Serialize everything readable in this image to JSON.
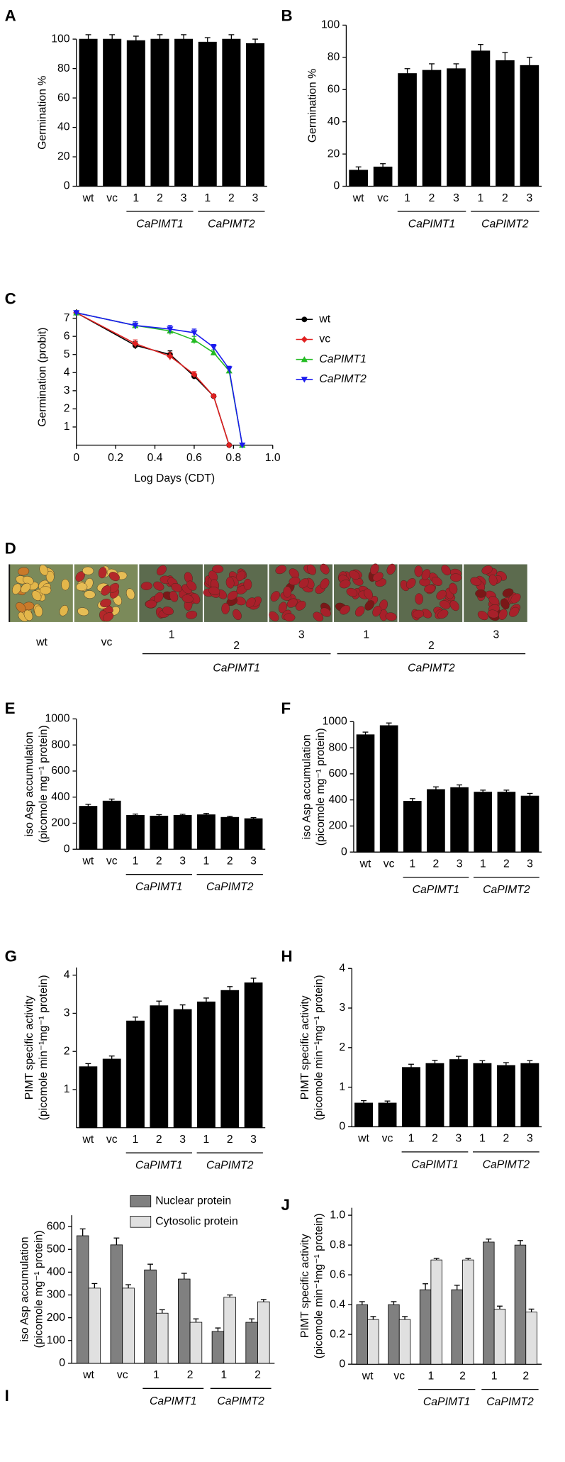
{
  "chart_data": [
    {
      "type": "bar",
      "panel": "A",
      "ylabel": [
        "Germination %"
      ],
      "categories": [
        "wt",
        "vc",
        "1",
        "2",
        "3",
        "1",
        "2",
        "3"
      ],
      "values": [
        100,
        100,
        99,
        100,
        100,
        98,
        100,
        97
      ],
      "errors": [
        3,
        3,
        3,
        3,
        3,
        3,
        3,
        3
      ],
      "color": "#000000",
      "groups": [
        {
          "name": "CaPIMT1",
          "span": 3
        },
        {
          "name": "CaPIMT2",
          "span": 3
        }
      ],
      "ylim": [
        0,
        100
      ],
      "yticks": [
        0,
        20,
        40,
        60,
        80,
        100
      ]
    },
    {
      "type": "bar",
      "panel": "B",
      "ylabel": [
        "Germination %"
      ],
      "categories": [
        "wt",
        "vc",
        "1",
        "2",
        "3",
        "1",
        "2",
        "3"
      ],
      "values": [
        10,
        12,
        70,
        72,
        73,
        84,
        78,
        75
      ],
      "errors": [
        2,
        2,
        3,
        4,
        3,
        4,
        5,
        5
      ],
      "color": "#000000",
      "groups": [
        {
          "name": "CaPIMT1",
          "span": 3
        },
        {
          "name": "CaPIMT2",
          "span": 3
        }
      ],
      "ylim": [
        0,
        100
      ],
      "yticks": [
        0,
        20,
        40,
        60,
        80,
        100
      ]
    },
    {
      "type": "line",
      "panel": "C",
      "ylabel": [
        "Germination (probit)"
      ],
      "xlabel": "Log Days (CDT)",
      "series": [
        {
          "name": "wt",
          "color": "#000000",
          "marker": "circle",
          "x": [
            0,
            0.3,
            0.477,
            0.6,
            0.699,
            0.778
          ],
          "values": [
            7.3,
            5.5,
            5.0,
            3.8,
            2.7,
            0
          ],
          "errors": [
            0,
            0.2,
            0.2,
            0.15,
            0.1,
            0
          ]
        },
        {
          "name": "vc",
          "color": "#e02020",
          "marker": "diamond",
          "x": [
            0,
            0.3,
            0.477,
            0.6,
            0.699,
            0.778
          ],
          "values": [
            7.3,
            5.6,
            4.9,
            3.9,
            2.7,
            0
          ],
          "errors": [
            0,
            0.2,
            0.2,
            0.15,
            0.1,
            0
          ]
        },
        {
          "name": "CaPIMT1",
          "color": "#22bb22",
          "marker": "triangle-up",
          "x": [
            0,
            0.3,
            0.477,
            0.6,
            0.699,
            0.778,
            0.845
          ],
          "values": [
            7.3,
            6.6,
            6.3,
            5.8,
            5.1,
            4.1,
            0
          ],
          "errors": [
            0,
            0.2,
            0.2,
            0.2,
            0.15,
            0.15,
            0
          ]
        },
        {
          "name": "CaPIMT2",
          "color": "#1a1aee",
          "marker": "triangle-down",
          "x": [
            0,
            0.3,
            0.477,
            0.6,
            0.699,
            0.778,
            0.845
          ],
          "values": [
            7.3,
            6.6,
            6.4,
            6.2,
            5.4,
            4.2,
            0
          ],
          "errors": [
            0,
            0.2,
            0.2,
            0.2,
            0.15,
            0.15,
            0
          ]
        }
      ],
      "xlim": [
        0,
        1
      ],
      "xticks": [
        0,
        0.2,
        0.4,
        0.6,
        0.8,
        {
          "value": 1,
          "label": "1.0"
        }
      ],
      "ylim": [
        0,
        7.5
      ],
      "yticks": [
        1,
        2,
        3,
        4,
        5,
        6,
        7
      ]
    },
    {
      "type": "bar",
      "panel": "E",
      "ylabel": [
        "iso Asp accumulation",
        "(picomole mg⁻¹ protein)"
      ],
      "categories": [
        "wt",
        "vc",
        "1",
        "2",
        "3",
        "1",
        "2",
        "3"
      ],
      "values": [
        330,
        370,
        260,
        255,
        260,
        265,
        245,
        235
      ],
      "errors": [
        15,
        15,
        10,
        10,
        8,
        10,
        8,
        8
      ],
      "color": "#000000",
      "groups": [
        {
          "name": "CaPIMT1",
          "span": 3
        },
        {
          "name": "CaPIMT2",
          "span": 3
        }
      ],
      "ylim": [
        0,
        1000
      ],
      "yticks": [
        0,
        200,
        400,
        600,
        800,
        1000
      ]
    },
    {
      "type": "bar",
      "panel": "F",
      "ylabel": [
        "iso Asp accumulation",
        "(picomole mg⁻¹ protein)"
      ],
      "categories": [
        "wt",
        "vc",
        "1",
        "2",
        "3",
        "1",
        "2",
        "3"
      ],
      "values": [
        900,
        970,
        390,
        480,
        495,
        460,
        460,
        430
      ],
      "errors": [
        20,
        20,
        20,
        20,
        20,
        15,
        15,
        20
      ],
      "color": "#000000",
      "groups": [
        {
          "name": "CaPIMT1",
          "span": 3
        },
        {
          "name": "CaPIMT2",
          "span": 3
        }
      ],
      "ylim": [
        0,
        1000
      ],
      "yticks": [
        0,
        200,
        400,
        600,
        800,
        1000
      ]
    },
    {
      "type": "bar",
      "panel": "G",
      "ylabel": [
        "PIMT specific activity",
        "(picomole min⁻¹mg⁻¹ protein)"
      ],
      "categories": [
        "wt",
        "vc",
        "1",
        "2",
        "3",
        "1",
        "2",
        "3"
      ],
      "values": [
        1.6,
        1.8,
        2.8,
        3.2,
        3.1,
        3.3,
        3.6,
        3.8
      ],
      "errors": [
        0.08,
        0.08,
        0.1,
        0.12,
        0.12,
        0.1,
        0.1,
        0.12
      ],
      "color": "#000000",
      "groups": [
        {
          "name": "CaPIMT1",
          "span": 3
        },
        {
          "name": "CaPIMT2",
          "span": 3
        }
      ],
      "ylim": [
        0,
        4.2
      ],
      "yticks": [
        1,
        2,
        3,
        4
      ]
    },
    {
      "type": "bar",
      "panel": "H",
      "ylabel": [
        "PIMT specific activity",
        "(picomole min⁻¹mg⁻¹ protein)"
      ],
      "categories": [
        "wt",
        "vc",
        "1",
        "2",
        "3",
        "1",
        "2",
        "3"
      ],
      "values": [
        0.6,
        0.6,
        1.5,
        1.6,
        1.7,
        1.6,
        1.55,
        1.6
      ],
      "errors": [
        0.06,
        0.05,
        0.08,
        0.08,
        0.08,
        0.07,
        0.07,
        0.07
      ],
      "color": "#000000",
      "groups": [
        {
          "name": "CaPIMT1",
          "span": 3
        },
        {
          "name": "CaPIMT2",
          "span": 3
        }
      ],
      "ylim": [
        0,
        4
      ],
      "yticks": [
        0,
        1,
        2,
        3,
        4
      ]
    },
    {
      "type": "bar",
      "panel": "I",
      "ylabel": [
        "iso Asp accumulation",
        "(picomole mg⁻¹ protein)"
      ],
      "categories": [
        "wt",
        "vc",
        "1",
        "2",
        "1",
        "2"
      ],
      "series": [
        {
          "name": "Nuclear protein",
          "color": "#808080",
          "values": [
            560,
            520,
            410,
            370,
            140,
            180
          ],
          "errors": [
            30,
            30,
            25,
            25,
            15,
            15
          ]
        },
        {
          "name": "Cytosolic protein",
          "color": "#e0e0e0",
          "values": [
            330,
            330,
            220,
            180,
            290,
            270
          ],
          "errors": [
            20,
            15,
            15,
            15,
            10,
            10
          ]
        }
      ],
      "groups": [
        {
          "name": "CaPIMT1",
          "span": 2
        },
        {
          "name": "CaPIMT2",
          "span": 2
        }
      ],
      "ylim": [
        0,
        650
      ],
      "yticks": [
        0,
        100,
        200,
        300,
        400,
        500,
        600
      ]
    },
    {
      "type": "bar",
      "panel": "J",
      "ylabel": [
        "PIMT specific activity",
        "(picomole min⁻¹mg⁻¹ protein)"
      ],
      "categories": [
        "wt",
        "vc",
        "1",
        "2",
        "1",
        "2"
      ],
      "series": [
        {
          "name": "Nuclear protein",
          "color": "#808080",
          "values": [
            0.4,
            0.4,
            0.5,
            0.5,
            0.82,
            0.8
          ],
          "errors": [
            0.02,
            0.02,
            0.04,
            0.03,
            0.02,
            0.03
          ]
        },
        {
          "name": "Cytosolic protein",
          "color": "#e0e0e0",
          "values": [
            0.3,
            0.3,
            0.7,
            0.7,
            0.37,
            0.35
          ],
          "errors": [
            0.02,
            0.02,
            0.01,
            0.01,
            0.02,
            0.02
          ]
        }
      ],
      "groups": [
        {
          "name": "CaPIMT1",
          "span": 2
        },
        {
          "name": "CaPIMT2",
          "span": 2
        }
      ],
      "ylim": [
        0,
        1.05
      ],
      "yticks": [
        0,
        0.2,
        0.4,
        0.6,
        0.8,
        {
          "value": 1,
          "label": "1.0"
        }
      ]
    }
  ],
  "image_panel": {
    "panel": "D",
    "lanes": [
      "wt",
      "vc",
      "1",
      "2",
      "3",
      "1",
      "2",
      "3"
    ],
    "groups": [
      {
        "name": "CaPIMT1",
        "span": 3
      },
      {
        "name": "CaPIMT2",
        "span": 3
      }
    ]
  }
}
